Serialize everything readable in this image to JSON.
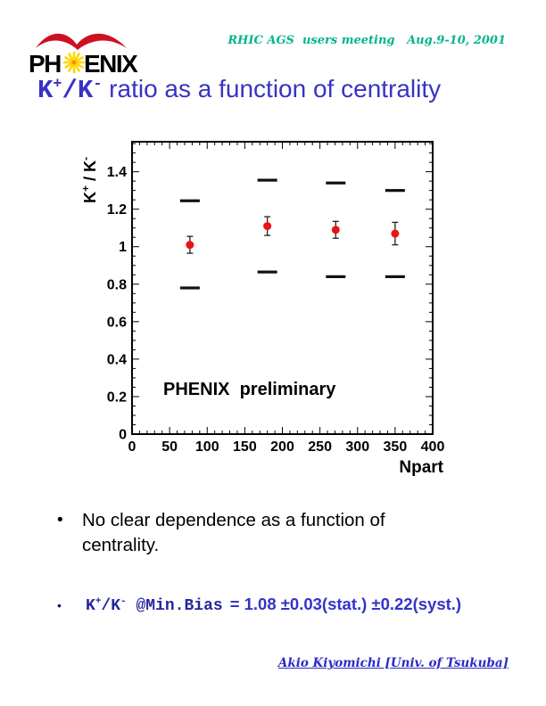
{
  "header": {
    "meeting_text": "RHIC AGS  users meeting   Aug.9-10, 2001",
    "meeting_color": "#00b48c"
  },
  "logo": {
    "left": "PH",
    "right": "ENIX",
    "wing_color": "#ce1021",
    "star_color": "#ffd700"
  },
  "title": {
    "k1": "K",
    "sup1": "+",
    "slash": "/",
    "k2": "K",
    "sup2": "-",
    "rest": " ratio as a function of centrality",
    "color": "#3733c4"
  },
  "bullets": {
    "b1_marker": "•",
    "b1_text": "No clear dependence as a function of centrality.",
    "b2_marker": "•",
    "b2": {
      "k1": "K",
      "sup1": "+",
      "slash": "/",
      "k2": "K",
      "sup2": "-",
      "at": " @Min.Bias",
      "value": "= 1.08 ±0.03(stat.) ±0.22(syst.)"
    }
  },
  "footer": {
    "credit": "Akio Kiyomichi [Univ. of Tsukuba]"
  },
  "chart_data": {
    "type": "scatter",
    "title": "",
    "xlabel": "Npart",
    "ylabel": "K+ / K-",
    "ylabel_parts": [
      {
        "t": "K"
      },
      {
        "t": "+",
        "sup": true
      },
      {
        "t": " / K"
      },
      {
        "t": "-",
        "sup": true
      }
    ],
    "xlim": [
      0,
      400
    ],
    "ylim": [
      0,
      1.56
    ],
    "x_major_ticks": [
      0,
      50,
      100,
      150,
      200,
      250,
      300,
      350,
      400
    ],
    "x_minor_step": 10,
    "y_major_ticks": [
      0,
      0.2,
      0.4,
      0.6,
      0.8,
      1,
      1.2,
      1.4
    ],
    "y_minor_step": 0.05,
    "grid": false,
    "legend": "none",
    "annotation": "PHENIX  preliminary",
    "marker_color": "#ee1111",
    "points": [
      {
        "x": 77,
        "y": 1.01,
        "stat": 0.045,
        "syst_high": 1.245,
        "syst_low": 0.78
      },
      {
        "x": 180,
        "y": 1.11,
        "stat": 0.05,
        "syst_high": 1.355,
        "syst_low": 0.865
      },
      {
        "x": 271,
        "y": 1.09,
        "stat": 0.045,
        "syst_high": 1.34,
        "syst_low": 0.84
      },
      {
        "x": 350,
        "y": 1.07,
        "stat": 0.06,
        "syst_high": 1.3,
        "syst_low": 0.84
      }
    ]
  }
}
